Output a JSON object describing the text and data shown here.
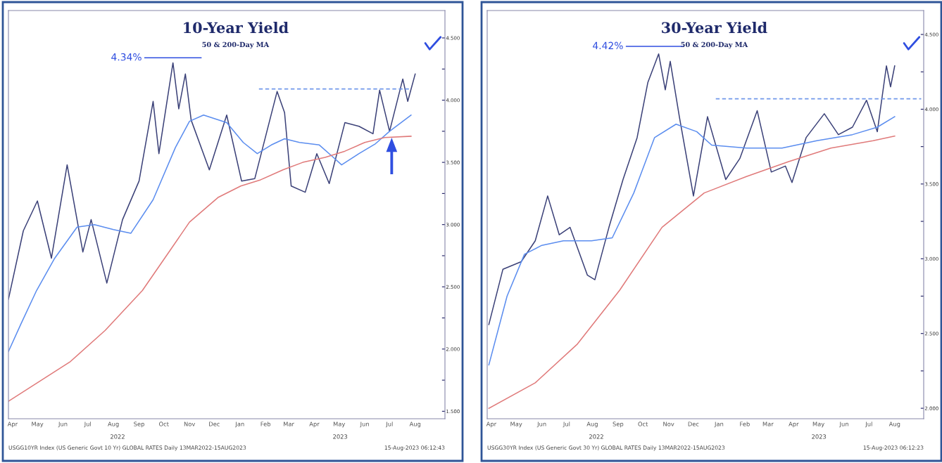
{
  "chart_data": [
    {
      "type": "line",
      "title": "10-Year Yield",
      "subtitle": "50 & 200-Day MA",
      "xlim": [
        "2022-04-10",
        "2023-09-20"
      ],
      "ylim": [
        1.44,
        4.72
      ],
      "xticks": [
        {
          "value": "2022-04-15",
          "label": "Apr"
        },
        {
          "value": "2022-05-15",
          "label": "May"
        },
        {
          "value": "2022-06-15",
          "label": "Jun"
        },
        {
          "value": "2022-07-15",
          "label": "Jul"
        },
        {
          "value": "2022-08-15",
          "label": "Aug"
        },
        {
          "value": "2022-09-15",
          "label": "Sep"
        },
        {
          "value": "2022-10-15",
          "label": "Oct"
        },
        {
          "value": "2022-11-15",
          "label": "Nov"
        },
        {
          "value": "2022-12-15",
          "label": "Dec"
        },
        {
          "value": "2023-01-15",
          "label": "Jan"
        },
        {
          "value": "2023-02-15",
          "label": "Feb"
        },
        {
          "value": "2023-03-15",
          "label": "Mar"
        },
        {
          "value": "2023-04-15",
          "label": "Apr"
        },
        {
          "value": "2023-05-15",
          "label": "May"
        },
        {
          "value": "2023-06-15",
          "label": "Jun"
        },
        {
          "value": "2023-07-15",
          "label": "Jul"
        },
        {
          "value": "2023-08-15",
          "label": "Aug"
        }
      ],
      "yticks": [
        {
          "value": 1.5,
          "label": "1.500"
        },
        {
          "value": 1.75,
          "label": null
        },
        {
          "value": 2.0,
          "label": "2.000"
        },
        {
          "value": 2.25,
          "label": null
        },
        {
          "value": 2.5,
          "label": "2.500"
        },
        {
          "value": 2.75,
          "label": null
        },
        {
          "value": 3.0,
          "label": "3.000"
        },
        {
          "value": 3.25,
          "label": null
        },
        {
          "value": 3.5,
          "label": "3.500"
        },
        {
          "value": 3.75,
          "label": null
        },
        {
          "value": 4.0,
          "label": "4.000"
        },
        {
          "value": 4.25,
          "label": null
        },
        {
          "value": 4.5,
          "label": "4.500"
        }
      ],
      "series": [
        {
          "color": "#3b4178",
          "x": [
            "2022-04-10",
            "2022-04-28",
            "2022-05-15",
            "2022-06-01",
            "2022-06-20",
            "2022-07-09",
            "2022-07-19",
            "2022-08-07",
            "2022-08-26",
            "2022-09-15",
            "2022-10-02",
            "2022-10-09",
            "2022-10-26",
            "2022-11-02",
            "2022-11-10",
            "2022-11-17",
            "2022-12-09",
            "2022-12-30",
            "2023-01-17",
            "2023-02-02",
            "2023-03-01",
            "2023-03-10",
            "2023-03-18",
            "2023-04-04",
            "2023-04-18",
            "2023-05-03",
            "2023-05-22",
            "2023-06-08",
            "2023-06-25",
            "2023-07-03",
            "2023-07-15",
            "2023-07-31",
            "2023-08-06",
            "2023-08-15"
          ],
          "values": [
            2.4,
            2.95,
            3.19,
            2.73,
            3.48,
            2.78,
            3.04,
            2.53,
            3.04,
            3.35,
            3.99,
            3.57,
            4.3,
            3.93,
            4.21,
            3.84,
            3.44,
            3.88,
            3.35,
            3.37,
            4.07,
            3.9,
            3.31,
            3.26,
            3.57,
            3.33,
            3.82,
            3.79,
            3.73,
            4.08,
            3.75,
            4.17,
            3.99,
            4.21
          ]
        },
        {
          "color": "#5b8def",
          "x": [
            "2022-04-10",
            "2022-04-25",
            "2022-05-14",
            "2022-06-05",
            "2022-07-02",
            "2022-07-23",
            "2022-08-15",
            "2022-09-05",
            "2022-10-02",
            "2022-10-29",
            "2022-11-15",
            "2022-12-02",
            "2022-12-30",
            "2023-01-19",
            "2023-02-05",
            "2023-02-22",
            "2023-03-10",
            "2023-03-28",
            "2023-04-21",
            "2023-05-08",
            "2023-05-18",
            "2023-06-08",
            "2023-06-28",
            "2023-07-15",
            "2023-08-10"
          ],
          "values": [
            1.98,
            2.2,
            2.47,
            2.73,
            2.98,
            3.0,
            2.96,
            2.93,
            3.2,
            3.62,
            3.83,
            3.88,
            3.82,
            3.66,
            3.57,
            3.64,
            3.69,
            3.66,
            3.64,
            3.54,
            3.48,
            3.57,
            3.65,
            3.75,
            3.88
          ]
        },
        {
          "color": "#e07a7a",
          "x": [
            "2022-04-10",
            "2022-06-24",
            "2022-08-05",
            "2022-09-19",
            "2022-10-16",
            "2022-11-15",
            "2022-12-20",
            "2023-01-16",
            "2023-02-09",
            "2023-03-08",
            "2023-04-01",
            "2023-04-28",
            "2023-05-22",
            "2023-06-15",
            "2023-07-09",
            "2023-08-10"
          ],
          "values": [
            1.58,
            1.9,
            2.15,
            2.47,
            2.73,
            3.02,
            3.22,
            3.31,
            3.36,
            3.44,
            3.5,
            3.54,
            3.59,
            3.66,
            3.7,
            3.71
          ]
        },
        {
          "color": "#7098ea",
          "line_style": "dashed",
          "x": [
            "2023-02-07",
            "2023-08-08"
          ],
          "values": [
            4.09,
            4.09
          ]
        },
        {
          "color": "#2f4ee0",
          "x": [
            "2022-09-22",
            "2022-11-29"
          ],
          "values": [
            4.34,
            4.34
          ]
        }
      ],
      "annotations": [
        {
          "text": "4.34%",
          "x": "2022-09-22",
          "y": 4.34
        },
        "2022",
        "2023",
        "USGG10YR Index (US Generic Govt 10 Yr) GLOBAL RATES Daily 13MAR2022-15AUG2023",
        "15-Aug-2023 06:12:43"
      ]
    },
    {
      "type": "line",
      "title": "30-Year Yield",
      "subtitle": "50 & 200-Day MA",
      "xlim": [
        "2022-04-10",
        "2023-09-19"
      ],
      "ylim": [
        1.93,
        4.66
      ],
      "xticks": [
        {
          "value": "2022-04-15",
          "label": "Apr"
        },
        {
          "value": "2022-05-15",
          "label": "May"
        },
        {
          "value": "2022-06-15",
          "label": "Jun"
        },
        {
          "value": "2022-07-15",
          "label": "Jul"
        },
        {
          "value": "2022-08-15",
          "label": "Aug"
        },
        {
          "value": "2022-09-15",
          "label": "Sep"
        },
        {
          "value": "2022-10-15",
          "label": "Oct"
        },
        {
          "value": "2022-11-15",
          "label": "Nov"
        },
        {
          "value": "2022-12-15",
          "label": "Dec"
        },
        {
          "value": "2023-01-15",
          "label": "Jan"
        },
        {
          "value": "2023-02-15",
          "label": "Feb"
        },
        {
          "value": "2023-03-15",
          "label": "Mar"
        },
        {
          "value": "2023-04-15",
          "label": "Apr"
        },
        {
          "value": "2023-05-15",
          "label": "May"
        },
        {
          "value": "2023-06-15",
          "label": "Jun"
        },
        {
          "value": "2023-07-15",
          "label": "Jul"
        },
        {
          "value": "2023-08-15",
          "label": "Aug"
        }
      ],
      "yticks": [
        {
          "value": 2.0,
          "label": "2.000"
        },
        {
          "value": 2.25,
          "label": null
        },
        {
          "value": 2.5,
          "label": "2.500"
        },
        {
          "value": 2.75,
          "label": null
        },
        {
          "value": 3.0,
          "label": "3.000"
        },
        {
          "value": 3.25,
          "label": null
        },
        {
          "value": 3.5,
          "label": "3.500"
        },
        {
          "value": 3.75,
          "label": null
        },
        {
          "value": 4.0,
          "label": "4.000"
        },
        {
          "value": 4.25,
          "label": null
        },
        {
          "value": 4.5,
          "label": "4.500"
        }
      ],
      "series": [
        {
          "color": "#3b4178",
          "x": [
            "2022-04-12",
            "2022-04-29",
            "2022-05-21",
            "2022-06-07",
            "2022-06-22",
            "2022-07-06",
            "2022-07-19",
            "2022-08-09",
            "2022-08-18",
            "2022-09-04",
            "2022-09-21",
            "2022-10-08",
            "2022-10-21",
            "2022-11-03",
            "2022-11-11",
            "2022-11-17",
            "2022-11-28",
            "2022-12-15",
            "2023-01-01",
            "2023-01-23",
            "2023-02-09",
            "2023-03-02",
            "2023-03-19",
            "2023-04-05",
            "2023-04-13",
            "2023-04-30",
            "2023-05-22",
            "2023-06-08",
            "2023-06-25",
            "2023-07-12",
            "2023-07-25",
            "2023-08-05",
            "2023-08-10",
            "2023-08-15"
          ],
          "values": [
            2.56,
            2.93,
            2.98,
            3.12,
            3.42,
            3.16,
            3.21,
            2.89,
            2.86,
            3.21,
            3.53,
            3.81,
            4.18,
            4.37,
            4.13,
            4.32,
            3.95,
            3.42,
            3.95,
            3.53,
            3.67,
            3.99,
            3.58,
            3.62,
            3.51,
            3.81,
            3.97,
            3.83,
            3.88,
            4.06,
            3.85,
            4.29,
            4.15,
            4.29
          ]
        },
        {
          "color": "#5b8def",
          "x": [
            "2022-04-12",
            "2022-05-04",
            "2022-05-25",
            "2022-06-15",
            "2022-07-11",
            "2022-08-14",
            "2022-09-08",
            "2022-10-04",
            "2022-10-29",
            "2022-11-24",
            "2022-12-19",
            "2023-01-06",
            "2023-02-17",
            "2023-04-01",
            "2023-05-13",
            "2023-06-25",
            "2023-07-25",
            "2023-08-15"
          ],
          "values": [
            2.29,
            2.75,
            3.03,
            3.09,
            3.12,
            3.12,
            3.14,
            3.44,
            3.81,
            3.9,
            3.85,
            3.76,
            3.74,
            3.74,
            3.79,
            3.83,
            3.88,
            3.95
          ]
        },
        {
          "color": "#e07a7a",
          "x": [
            "2022-04-12",
            "2022-06-07",
            "2022-07-28",
            "2022-09-17",
            "2022-11-07",
            "2022-12-28",
            "2023-02-17",
            "2023-04-09",
            "2023-05-30",
            "2023-07-20",
            "2023-08-15"
          ],
          "values": [
            2.0,
            2.17,
            2.43,
            2.79,
            3.21,
            3.44,
            3.55,
            3.65,
            3.74,
            3.79,
            3.82
          ]
        },
        {
          "color": "#7098ea",
          "line_style": "dashed",
          "x": [
            "2023-01-11",
            "2023-09-16"
          ],
          "values": [
            4.07,
            4.07
          ]
        },
        {
          "color": "#2f4ee0",
          "x": [
            "2022-09-25",
            "2022-12-02"
          ],
          "values": [
            4.42,
            4.42
          ]
        }
      ],
      "annotations": [
        {
          "text": "4.42%",
          "x": "2022-09-25",
          "y": 4.42
        },
        "2022",
        "2023",
        "USGG30YR Index (US Generic Govt 30 Yr) GLOBAL RATES Daily 13MAR2022-15AUG2023",
        "15-Aug-2023 06:12:23"
      ]
    }
  ]
}
